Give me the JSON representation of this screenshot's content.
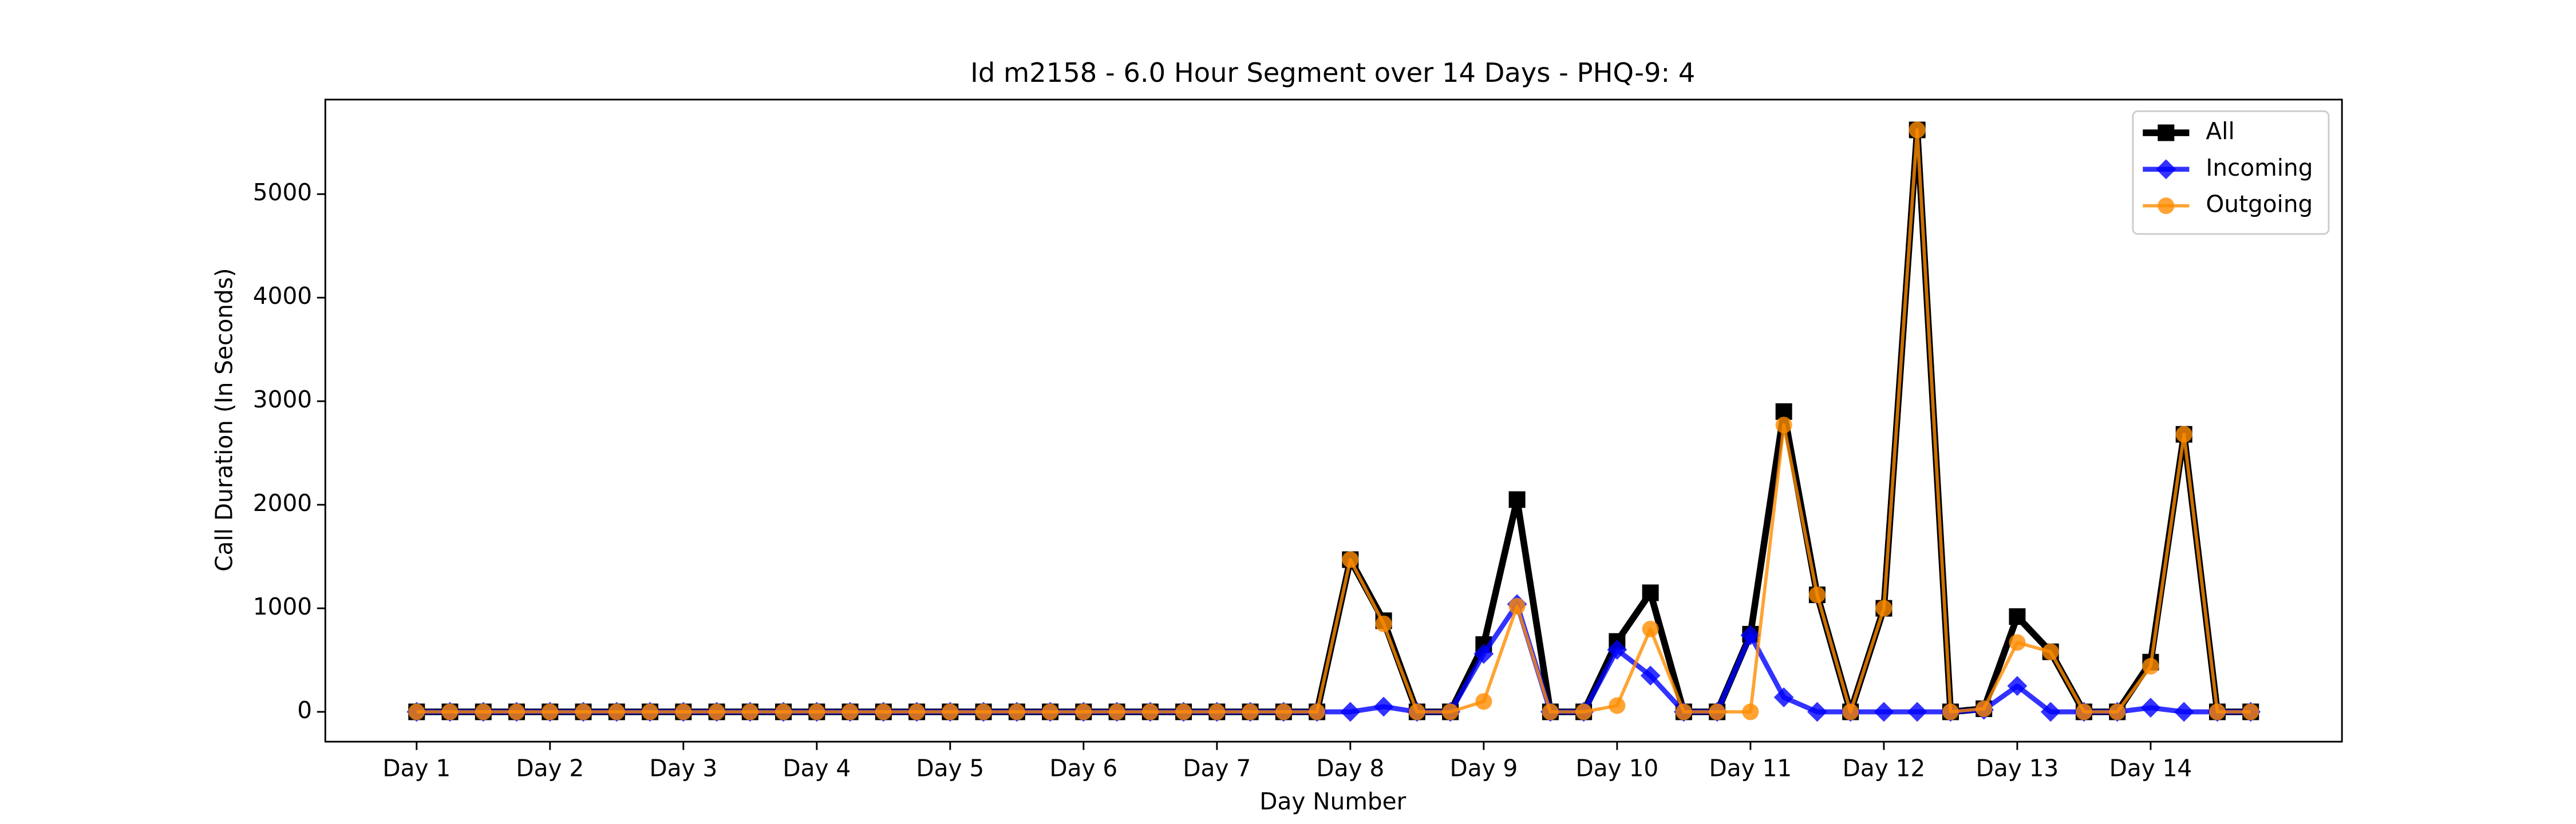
{
  "chart_data": {
    "type": "line",
    "title": "Id m2158 - 6.0 Hour Segment over 14 Days - PHQ-9: 4",
    "x_label": "Day Number",
    "y_label": "Call Duration (In Seconds)",
    "categories": [
      "Day 1",
      null,
      null,
      null,
      "Day 2",
      null,
      null,
      null,
      "Day 3",
      null,
      null,
      null,
      "Day 4",
      null,
      null,
      null,
      "Day 5",
      null,
      null,
      null,
      "Day 6",
      null,
      null,
      null,
      "Day 7",
      null,
      null,
      null,
      "Day 8",
      null,
      null,
      null,
      "Day 9",
      null,
      null,
      null,
      "Day 10",
      null,
      null,
      null,
      "Day 11",
      null,
      null,
      null,
      "Day 12",
      null,
      null,
      null,
      "Day 13",
      null,
      null,
      null,
      "Day 14",
      null,
      null,
      null
    ],
    "series": [
      {
        "name": "All",
        "color": "#000000",
        "marker": "square",
        "values": [
          0,
          0,
          0,
          0,
          0,
          0,
          0,
          0,
          0,
          0,
          0,
          0,
          0,
          0,
          0,
          0,
          0,
          0,
          0,
          0,
          0,
          0,
          0,
          0,
          0,
          0,
          0,
          0,
          1470,
          880,
          0,
          0,
          650,
          2050,
          0,
          0,
          680,
          1150,
          0,
          0,
          750,
          2900,
          1130,
          0,
          1000,
          5620,
          0,
          30,
          920,
          580,
          0,
          0,
          480,
          2680,
          0,
          0
        ]
      },
      {
        "name": "Incoming",
        "color": "#0000ff",
        "marker": "diamond",
        "values": [
          0,
          0,
          0,
          0,
          0,
          0,
          0,
          0,
          0,
          0,
          0,
          0,
          0,
          0,
          0,
          0,
          0,
          0,
          0,
          0,
          0,
          0,
          0,
          0,
          0,
          0,
          0,
          0,
          0,
          50,
          0,
          0,
          560,
          1040,
          0,
          0,
          600,
          350,
          0,
          0,
          740,
          140,
          0,
          0,
          0,
          0,
          0,
          20,
          250,
          0,
          0,
          0,
          40,
          0,
          0,
          0
        ]
      },
      {
        "name": "Outgoing",
        "color": "#ff8c00",
        "marker": "circle",
        "values": [
          0,
          0,
          0,
          0,
          0,
          0,
          0,
          0,
          0,
          0,
          0,
          0,
          0,
          0,
          0,
          0,
          0,
          0,
          0,
          0,
          0,
          0,
          0,
          0,
          0,
          0,
          0,
          0,
          1470,
          850,
          0,
          0,
          100,
          1020,
          0,
          0,
          60,
          800,
          0,
          0,
          0,
          2770,
          1130,
          0,
          1000,
          5620,
          0,
          30,
          670,
          580,
          0,
          0,
          440,
          2680,
          0,
          0
        ]
      }
    ],
    "ylim": [
      -288,
      5913
    ],
    "yticks": [
      0,
      1000,
      2000,
      3000,
      4000,
      5000
    ],
    "legend": "upper right"
  }
}
